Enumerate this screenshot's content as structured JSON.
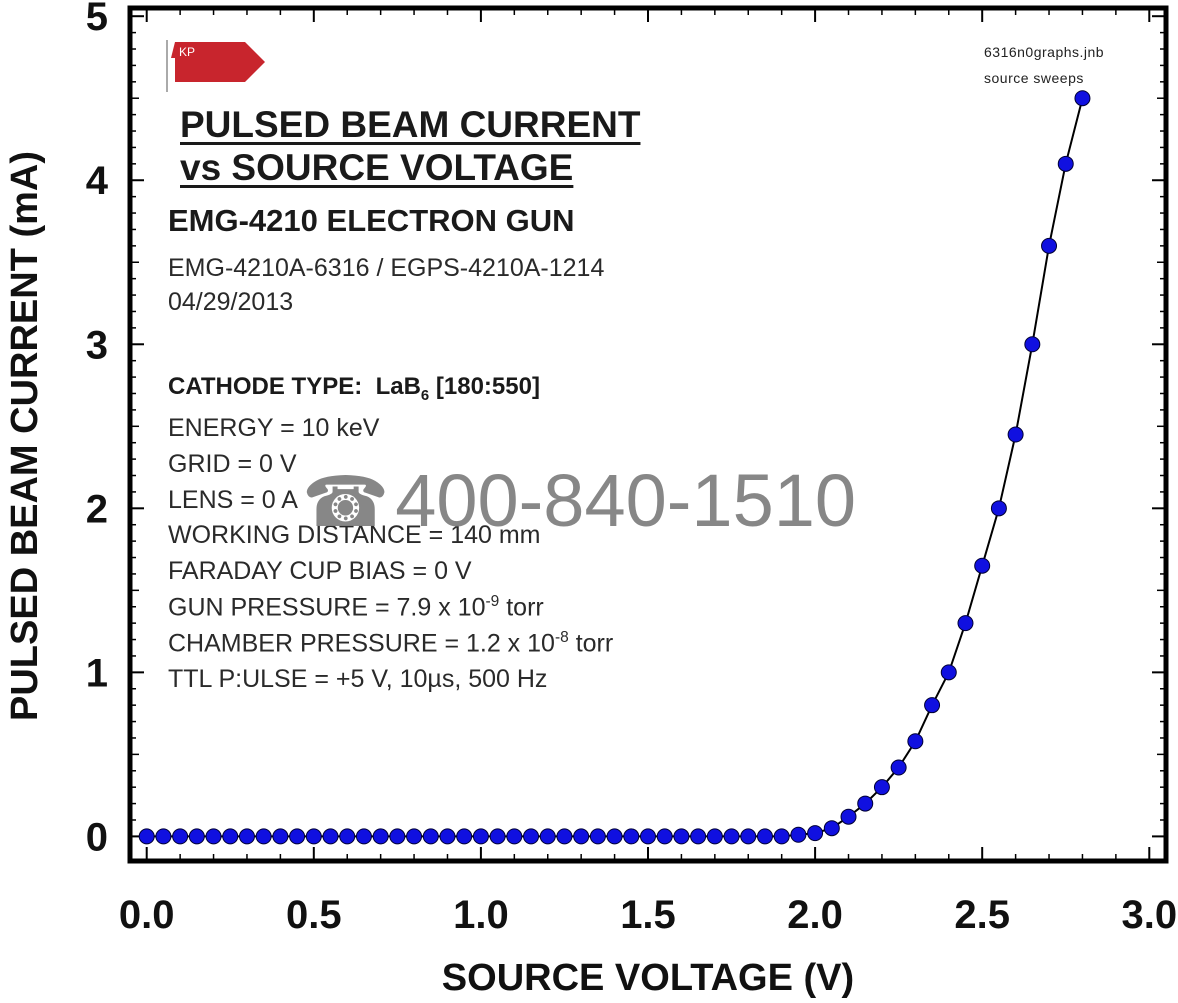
{
  "chart_data": {
    "type": "scatter",
    "title": [
      "PULSED BEAM CURRENT",
      "vs SOURCE VOLTAGE"
    ],
    "subtitle": "EMG-4210 ELECTRON GUN",
    "xlabel": "SOURCE VOLTAGE (V)",
    "ylabel": "PULSED BEAM CURRENT (mA)",
    "xlim": [
      -0.05,
      3.05
    ],
    "ylim": [
      -0.15,
      5.05
    ],
    "xticks": [
      "0.0",
      "0.5",
      "1.0",
      "1.5",
      "2.0",
      "2.5",
      "3.0"
    ],
    "xtick_values": [
      0,
      0.5,
      1.0,
      1.5,
      2.0,
      2.5,
      3.0
    ],
    "yticks": [
      "0",
      "1",
      "2",
      "3",
      "4",
      "5"
    ],
    "ytick_values": [
      0,
      1,
      2,
      3,
      4,
      5
    ],
    "grid": false,
    "marker_color": "#1010e0",
    "line_color": "#000000",
    "series": [
      {
        "x": [
          0.0,
          0.05,
          0.1,
          0.15,
          0.2,
          0.25,
          0.3,
          0.35,
          0.4,
          0.45,
          0.5,
          0.55,
          0.6,
          0.65,
          0.7,
          0.75,
          0.8,
          0.85,
          0.9,
          0.95,
          1.0,
          1.05,
          1.1,
          1.15,
          1.2,
          1.25,
          1.3,
          1.35,
          1.4,
          1.45,
          1.5,
          1.55,
          1.6,
          1.65,
          1.7,
          1.75,
          1.8,
          1.85,
          1.9,
          1.95,
          2.0,
          2.05,
          2.1,
          2.15,
          2.2,
          2.25,
          2.3,
          2.35,
          2.4,
          2.45,
          2.5,
          2.55,
          2.6,
          2.65,
          2.7,
          2.75,
          2.8
        ],
        "y": [
          0,
          0,
          0,
          0,
          0,
          0,
          0,
          0,
          0,
          0,
          0,
          0,
          0,
          0,
          0,
          0,
          0,
          0,
          0,
          0,
          0,
          0,
          0,
          0,
          0,
          0,
          0,
          0,
          0,
          0,
          0,
          0,
          0,
          0,
          0,
          0,
          0,
          0,
          0,
          0.01,
          0.02,
          0.05,
          0.12,
          0.2,
          0.3,
          0.42,
          0.58,
          0.8,
          1.0,
          1.3,
          1.65,
          2.0,
          2.45,
          3.0,
          3.6,
          4.1,
          4.5
        ]
      }
    ]
  },
  "annotations": {
    "logo_text": "KP",
    "file_line1": "6316n0graphs.jnb",
    "file_line2": "source sweeps",
    "model_line": "EMG-4210A-6316 / EGPS-4210A-1214",
    "date": "04/29/2013",
    "cathode_label": "CATHODE TYPE:",
    "cathode_value_prefix": "LaB",
    "cathode_value_sub": "6",
    "cathode_value_suffix": "[180:550]",
    "energy": "ENERGY = 10 keV",
    "grid": "GRID = 0 V",
    "lens": "LENS = 0 A",
    "working_distance": "WORKING DISTANCE = 140 mm",
    "faraday": "FARADAY CUP BIAS = 0 V",
    "gun_pressure_prefix": "GUN PRESSURE = 7.9 x 10",
    "gun_pressure_exp": "-9",
    "gun_pressure_unit": " torr",
    "chamber_pressure_prefix": "CHAMBER PRESSURE = 1.2 x 10",
    "chamber_pressure_exp": "-8",
    "chamber_pressure_unit": " torr",
    "ttl_pulse": "TTL P:ULSE = +5 V, 10µs, 500 Hz",
    "phone_icon": "telephone-icon",
    "phone_number": "400-840-1510"
  }
}
